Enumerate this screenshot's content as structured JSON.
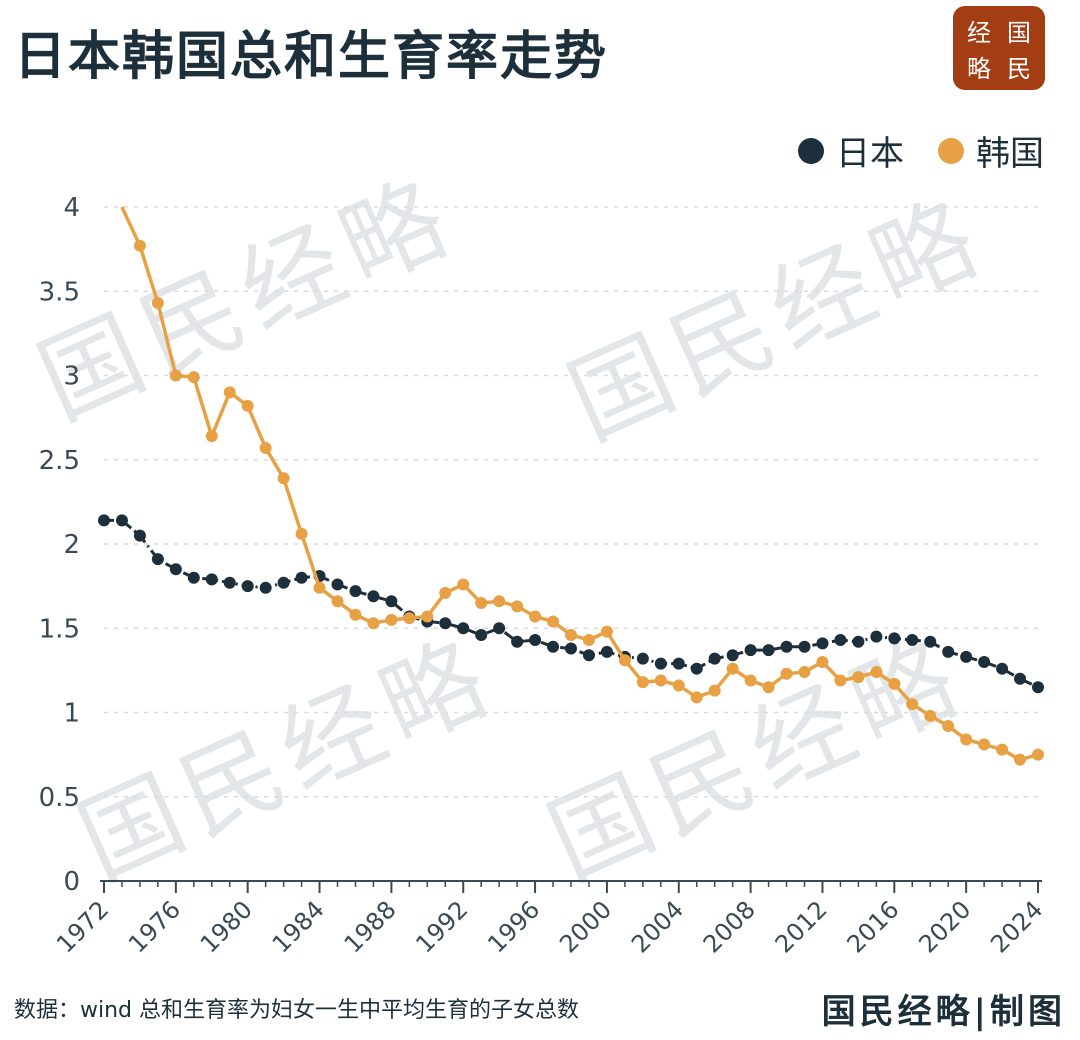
{
  "title": "日本韩国总和生育率走势",
  "badge": {
    "chars": [
      "经",
      "国",
      "略",
      "民"
    ]
  },
  "watermark": "国民经略",
  "legend": [
    {
      "name": "日本",
      "color": "#1c2f3a"
    },
    {
      "name": "韩国",
      "color": "#e8a044"
    }
  ],
  "footer": {
    "source": "数据：wind   总和生育率为妇女一生中平均生育的子女总数",
    "brand": "国民经略|制图"
  },
  "chart_data": {
    "type": "line",
    "ylim": [
      0,
      4
    ],
    "yticks": [
      0,
      0.5,
      1,
      1.5,
      2,
      2.5,
      3,
      3.5,
      4
    ],
    "ytick_labels": [
      "0",
      "0.5",
      "1",
      "1.5",
      "2",
      "2.5",
      "3",
      "3.5",
      "4"
    ],
    "xlim": [
      1972,
      2024
    ],
    "xticks": [
      1972,
      1976,
      1980,
      1984,
      1988,
      1992,
      1996,
      2000,
      2004,
      2008,
      2012,
      2016,
      2020,
      2024
    ],
    "xtick_labels": [
      "1972",
      "1976",
      "1980",
      "1984",
      "1988",
      "1992",
      "1996",
      "2000",
      "2004",
      "2008",
      "2012",
      "2016",
      "2020",
      "2024"
    ],
    "grid": true,
    "legend_position": "top-right",
    "series": [
      {
        "name": "日本",
        "color": "#1c2f3a",
        "x": [
          1972,
          1973,
          1974,
          1975,
          1976,
          1977,
          1978,
          1979,
          1980,
          1981,
          1982,
          1983,
          1984,
          1985,
          1986,
          1987,
          1988,
          1989,
          1990,
          1991,
          1992,
          1993,
          1994,
          1995,
          1996,
          1997,
          1998,
          1999,
          2000,
          2001,
          2002,
          2003,
          2004,
          2005,
          2006,
          2007,
          2008,
          2009,
          2010,
          2011,
          2012,
          2013,
          2014,
          2015,
          2016,
          2017,
          2018,
          2019,
          2020,
          2021,
          2022,
          2023,
          2024
        ],
        "values": [
          2.14,
          2.14,
          2.05,
          1.91,
          1.85,
          1.8,
          1.79,
          1.77,
          1.75,
          1.74,
          1.77,
          1.8,
          1.81,
          1.76,
          1.72,
          1.69,
          1.66,
          1.57,
          1.54,
          1.53,
          1.5,
          1.46,
          1.5,
          1.42,
          1.43,
          1.39,
          1.38,
          1.34,
          1.36,
          1.33,
          1.32,
          1.29,
          1.29,
          1.26,
          1.32,
          1.34,
          1.37,
          1.37,
          1.39,
          1.39,
          1.41,
          1.43,
          1.42,
          1.45,
          1.44,
          1.43,
          1.42,
          1.36,
          1.33,
          1.3,
          1.26,
          1.2,
          1.15
        ]
      },
      {
        "name": "韩国",
        "color": "#e8a044",
        "x": [
          1973,
          1974,
          1975,
          1976,
          1977,
          1978,
          1979,
          1980,
          1981,
          1982,
          1983,
          1984,
          1985,
          1986,
          1987,
          1988,
          1989,
          1990,
          1991,
          1992,
          1993,
          1994,
          1995,
          1996,
          1997,
          1998,
          1999,
          2000,
          2001,
          2002,
          2003,
          2004,
          2005,
          2006,
          2007,
          2008,
          2009,
          2010,
          2011,
          2012,
          2013,
          2014,
          2015,
          2016,
          2017,
          2018,
          2019,
          2020,
          2021,
          2022,
          2023,
          2024
        ],
        "values": [
          4.0,
          3.77,
          3.43,
          3.0,
          2.99,
          2.64,
          2.9,
          2.82,
          2.57,
          2.39,
          2.06,
          1.74,
          1.66,
          1.58,
          1.53,
          1.55,
          1.56,
          1.57,
          1.71,
          1.76,
          1.65,
          1.66,
          1.63,
          1.57,
          1.54,
          1.46,
          1.43,
          1.48,
          1.31,
          1.18,
          1.19,
          1.16,
          1.09,
          1.13,
          1.26,
          1.19,
          1.15,
          1.23,
          1.24,
          1.3,
          1.19,
          1.21,
          1.24,
          1.17,
          1.05,
          0.98,
          0.92,
          0.84,
          0.81,
          0.78,
          0.72,
          0.75
        ]
      }
    ]
  }
}
